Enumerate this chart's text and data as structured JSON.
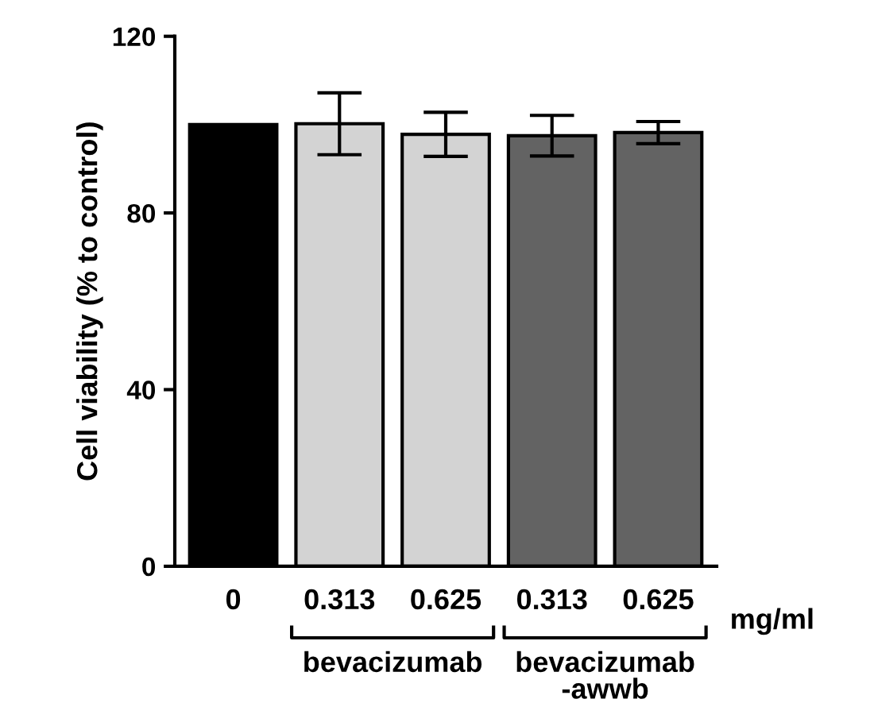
{
  "chart_data": {
    "type": "bar",
    "ylabel": "Cell viability (% to control)",
    "categories": [
      "0",
      "0.313",
      "0.625",
      "0.313",
      "0.625"
    ],
    "values": [
      100,
      100.2,
      97.8,
      97.5,
      98.2
    ],
    "errors": [
      null,
      7,
      5,
      4.6,
      2.5
    ],
    "colors": [
      "#000000",
      "#d3d3d3",
      "#d3d3d3",
      "#636363",
      "#636363"
    ],
    "ylim": [
      0,
      120
    ],
    "yticks": [
      0,
      40,
      80,
      120
    ],
    "grid": false,
    "annotations": [
      "mg/ml",
      "bevacizumab",
      "bevacizumab\n-awwb"
    ]
  }
}
